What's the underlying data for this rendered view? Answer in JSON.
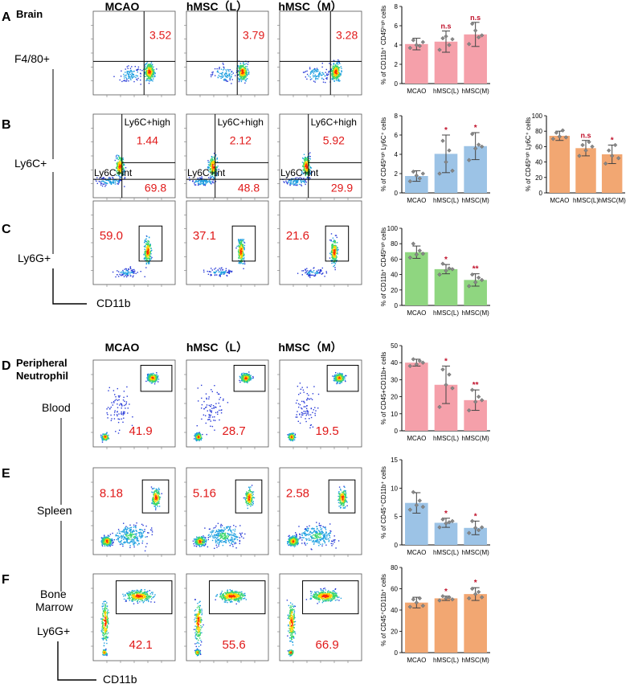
{
  "panels": [
    {
      "letter": "A",
      "section": "Brain",
      "marker": "F4/80+",
      "gate": "rect"
    },
    {
      "letter": "B",
      "marker": "Ly6C+",
      "gate": "quad"
    },
    {
      "letter": "C",
      "marker": "Ly6G+",
      "gate": "rect",
      "xaxis": "CD11b"
    },
    {
      "letter": "D",
      "section": "Peripheral\nNeutrophil",
      "marker": "Blood",
      "gate": "rect"
    },
    {
      "letter": "E",
      "marker": "Spleen",
      "gate": "rect"
    },
    {
      "letter": "F",
      "marker": "Bone\nMarrow",
      "marker2": "Ly6G+",
      "gate": "rect",
      "xaxis": "CD11b"
    }
  ],
  "group_headers": [
    "MCAO",
    "hMSC（L）",
    "hMSC（M）"
  ],
  "flow": {
    "A": {
      "values": [
        "3.52",
        "3.79",
        "3.28"
      ]
    },
    "B": {
      "high": [
        "1.44",
        "2.12",
        "5.92"
      ],
      "int": [
        "69.8",
        "48.8",
        "29.9"
      ],
      "label_high": "Ly6C+high",
      "label_int": "Ly6C+int"
    },
    "C": {
      "values": [
        "59.0",
        "37.1",
        "21.6"
      ]
    },
    "D": {
      "values": [
        "41.9",
        "28.7",
        "19.5"
      ]
    },
    "E": {
      "values": [
        "8.18",
        "5.16",
        "2.58"
      ]
    },
    "F": {
      "values": [
        "42.1",
        "55.6",
        "66.9"
      ]
    }
  },
  "colors": {
    "pink": "#f5a0aa",
    "blue": "#9cc3e6",
    "green": "#8fd680",
    "orange": "#f2a772",
    "sig": "#c0102a",
    "text_red": "#e01818"
  },
  "chart_data": [
    {
      "id": "A",
      "type": "bar",
      "categories": [
        "MCAO",
        "hMSC(L)",
        "hMSC(M)"
      ],
      "values": [
        4.1,
        4.35,
        5.1
      ],
      "errors": [
        0.6,
        1.1,
        1.25
      ],
      "ylabel": "% of CD11b⁺ CD45ʰⁱᵍʰ cells",
      "ylim": [
        0,
        8
      ],
      "ticks": [
        0,
        2,
        4,
        6,
        8
      ],
      "sig": [
        "",
        "n.s",
        "n.s"
      ],
      "color": "pink",
      "points": [
        [
          3.7,
          4.5,
          4.0,
          3.9,
          4.3
        ],
        [
          3.5,
          4.7,
          4.9,
          4.0,
          4.6
        ],
        [
          4.1,
          6.2,
          5.5,
          4.8,
          5.0
        ]
      ]
    },
    {
      "id": "B1",
      "type": "bar",
      "categories": [
        "MCAO",
        "hMSC(L)",
        "hMSC(M)"
      ],
      "values": [
        1.75,
        4.05,
        4.85
      ],
      "errors": [
        0.55,
        1.95,
        1.4
      ],
      "ylabel": "% of CD45ʰⁱᵍʰ Ly6C⁺ cells",
      "ylim": [
        0,
        8
      ],
      "ticks": [
        0,
        2,
        4,
        6,
        8
      ],
      "sig": [
        "",
        "*",
        "*"
      ],
      "color": "blue",
      "points": [
        [
          1.2,
          2.2,
          1.8,
          1.5,
          2.0
        ],
        [
          2.0,
          5.4,
          3.2,
          4.4,
          2.3
        ],
        [
          3.4,
          6.1,
          4.6,
          5.0,
          4.8
        ]
      ]
    },
    {
      "id": "B2",
      "type": "bar",
      "categories": [
        "MCAO",
        "hMSC(L)",
        "hMSC(M)"
      ],
      "values": [
        74,
        58,
        50
      ],
      "errors": [
        6,
        10,
        12
      ],
      "ylabel": "% of CD45ʰⁱᵍʰ Ly6C⁺ cells",
      "ylim": [
        0,
        100
      ],
      "ticks": [
        0,
        20,
        40,
        60,
        80,
        100
      ],
      "sig": [
        "",
        "n.s",
        "*"
      ],
      "color": "orange",
      "points": [
        [
          70,
          78,
          73,
          81,
          72
        ],
        [
          48,
          62,
          55,
          66,
          60
        ],
        [
          38,
          55,
          48,
          62,
          45
        ]
      ]
    },
    {
      "id": "C",
      "type": "bar",
      "categories": [
        "MCAO",
        "hMSC(L)",
        "hMSC(M)"
      ],
      "values": [
        69,
        47,
        33
      ],
      "errors": [
        8,
        6,
        8
      ],
      "ylabel": "% of CD11b⁺ CD45ʰⁱᵍʰ cells",
      "ylim": [
        0,
        100
      ],
      "ticks": [
        0,
        20,
        40,
        60,
        80,
        100
      ],
      "sig": [
        "",
        "*",
        "**"
      ],
      "color": "green",
      "points": [
        [
          62,
          80,
          66,
          71,
          67
        ],
        [
          40,
          54,
          45,
          48,
          47
        ],
        [
          25,
          40,
          30,
          36,
          33
        ]
      ]
    },
    {
      "id": "D",
      "type": "bar",
      "categories": [
        "MCAO",
        "hMSC(L)",
        "hMSC(M)"
      ],
      "values": [
        40,
        27,
        18
      ],
      "errors": [
        2,
        11,
        6
      ],
      "ylabel": "% of CD45+CD11b+ cells",
      "ylim": [
        0,
        50
      ],
      "ticks": [
        0,
        10,
        20,
        30,
        40,
        50
      ],
      "sig": [
        "",
        "*",
        "**"
      ],
      "color": "pink",
      "points": [
        [
          38,
          42,
          39,
          41,
          40
        ],
        [
          14,
          36,
          27,
          33,
          25
        ],
        [
          12,
          24,
          17,
          20,
          18
        ]
      ]
    },
    {
      "id": "E",
      "type": "bar",
      "categories": [
        "MCAO",
        "hMSC(L)",
        "hMSC(M)"
      ],
      "values": [
        7.4,
        3.9,
        3.0
      ],
      "errors": [
        1.8,
        0.8,
        1.2
      ],
      "ylabel": "% of CD45⁺CD11b⁺ cells",
      "ylim": [
        0,
        15
      ],
      "ticks": [
        0,
        5,
        10,
        15
      ],
      "sig": [
        "",
        "*",
        "*"
      ],
      "color": "blue",
      "points": [
        [
          6.2,
          9.3,
          7.0,
          7.8,
          6.7
        ],
        [
          3.1,
          4.5,
          3.8,
          4.0,
          4.2
        ],
        [
          2.1,
          4.2,
          3.0,
          2.6,
          3.1
        ]
      ]
    },
    {
      "id": "F",
      "type": "bar",
      "categories": [
        "MCAO",
        "hMSC(L)",
        "hMSC(M)"
      ],
      "values": [
        47,
        51,
        55
      ],
      "errors": [
        5,
        2,
        6
      ],
      "ylabel": "% of CD45⁺CD11b⁺ cells",
      "ylim": [
        0,
        80
      ],
      "ticks": [
        0,
        20,
        40,
        60,
        80
      ],
      "sig": [
        "",
        "*",
        "*"
      ],
      "color": "orange",
      "points": [
        [
          43,
          50,
          47,
          51,
          44
        ],
        [
          49,
          53,
          51,
          52,
          50
        ],
        [
          51,
          60,
          55,
          57,
          52
        ]
      ]
    }
  ]
}
